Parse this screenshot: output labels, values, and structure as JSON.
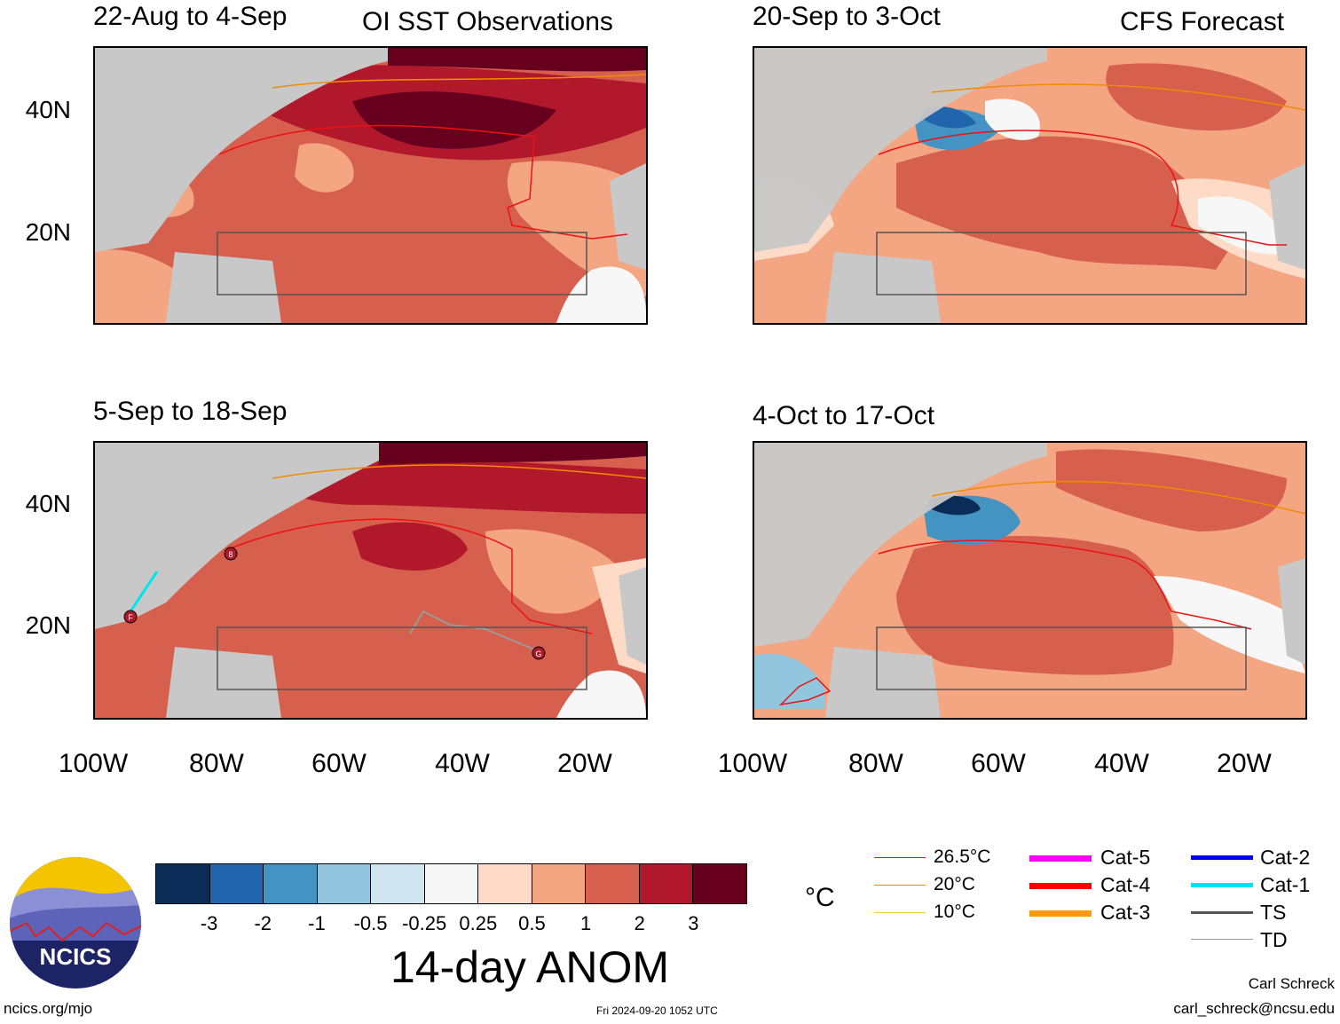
{
  "panels": [
    {
      "title_left": "22-Aug to 4-Sep",
      "title_right": "OI SST Observations"
    },
    {
      "title_left": "20-Sep to 3-Oct",
      "title_right": "CFS Forecast"
    },
    {
      "title_left": "5-Sep to 18-Sep",
      "title_right": ""
    },
    {
      "title_left": "4-Oct to 17-Oct",
      "title_right": ""
    }
  ],
  "axes": {
    "lat_labels": [
      "40N",
      "20N"
    ],
    "lon_labels": [
      "100W",
      "80W",
      "60W",
      "40W",
      "20W"
    ]
  },
  "storm_markers": [
    "F",
    "G",
    "8"
  ],
  "colorbar": {
    "colors": [
      "#0b2c57",
      "#2166ac",
      "#4393c3",
      "#92c5de",
      "#d1e5f0",
      "#f7f7f7",
      "#fddbc7",
      "#f4a582",
      "#d6604d",
      "#b2182b",
      "#67001f"
    ],
    "labels": [
      "-3",
      "-2",
      "-1",
      "-0.5",
      "-0.25",
      "0.25",
      "0.5",
      "1",
      "2",
      "3"
    ],
    "title": "14-day ANOM"
  },
  "units": "°C",
  "legend": {
    "isotherms": [
      {
        "label": "26.5°C",
        "color": "#ee1111"
      },
      {
        "label": "20°C",
        "color": "#f08c00"
      },
      {
        "label": "10°C",
        "color": "#f2d21e"
      }
    ],
    "categories_a": [
      {
        "label": "Cat-5",
        "color": "#ff00ff"
      },
      {
        "label": "Cat-4",
        "color": "#ff0000"
      },
      {
        "label": "Cat-3",
        "color": "#ff9900"
      }
    ],
    "categories_b": [
      {
        "label": "Cat-2",
        "color": "#0000ee"
      },
      {
        "label": "Cat-1",
        "color": "#00e5ee"
      },
      {
        "label": "TS",
        "color": "#555555"
      },
      {
        "label": "TD",
        "color": "#9a9a9a"
      }
    ]
  },
  "logo_text": "NCICS",
  "footer": {
    "url": "ncics.org/mjo",
    "timestamp": "Fri 2024-09-20 1052 UTC",
    "author": "Carl Schreck",
    "email": "carl_schreck@ncsu.edu"
  }
}
